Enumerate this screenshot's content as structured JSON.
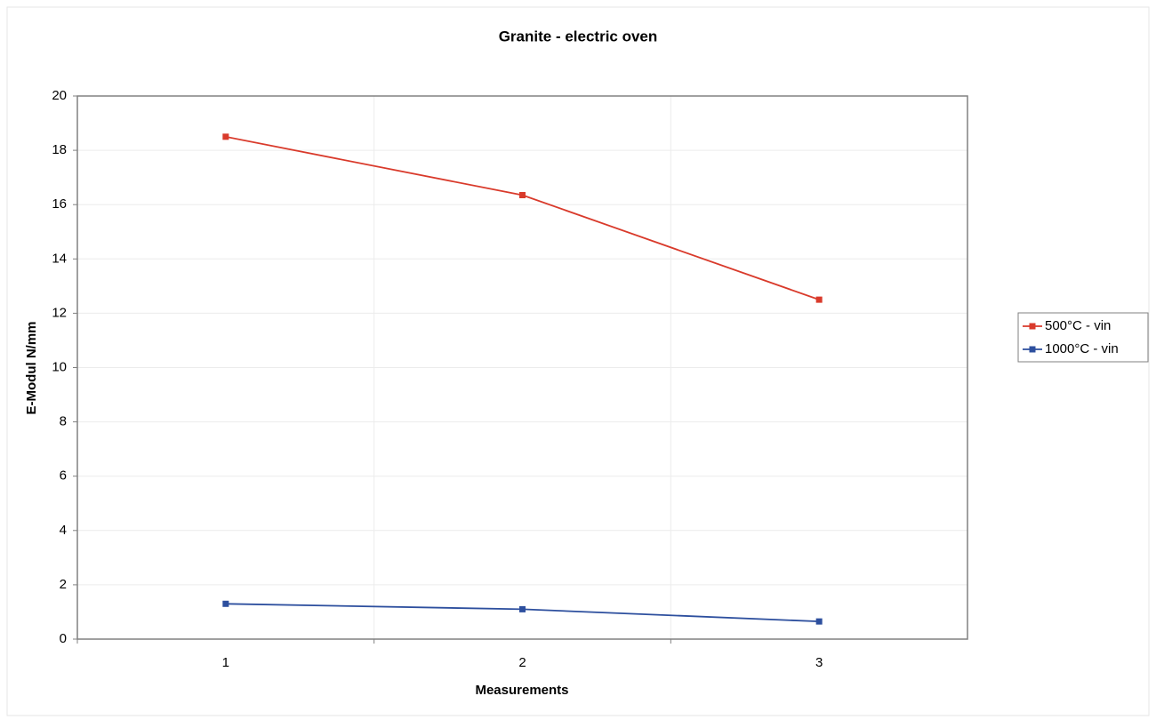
{
  "chart_data": {
    "type": "line",
    "title": "Granite - electric oven",
    "x_label": "Measurements",
    "y_label": "E-Modul N/mm",
    "categories": [
      "1",
      "2",
      "3"
    ],
    "series": [
      {
        "name": "500°C - vin",
        "color": "#d93a2b",
        "values": [
          18.5,
          16.35,
          12.5
        ]
      },
      {
        "name": "1000°C - vin",
        "color": "#2d4f9e",
        "values": [
          1.3,
          1.1,
          0.65
        ]
      }
    ],
    "ylim": [
      0,
      20
    ],
    "yticks": [
      0,
      2,
      4,
      6,
      8,
      10,
      12,
      14,
      16,
      18,
      20
    ],
    "grid": true,
    "legend": "right"
  }
}
